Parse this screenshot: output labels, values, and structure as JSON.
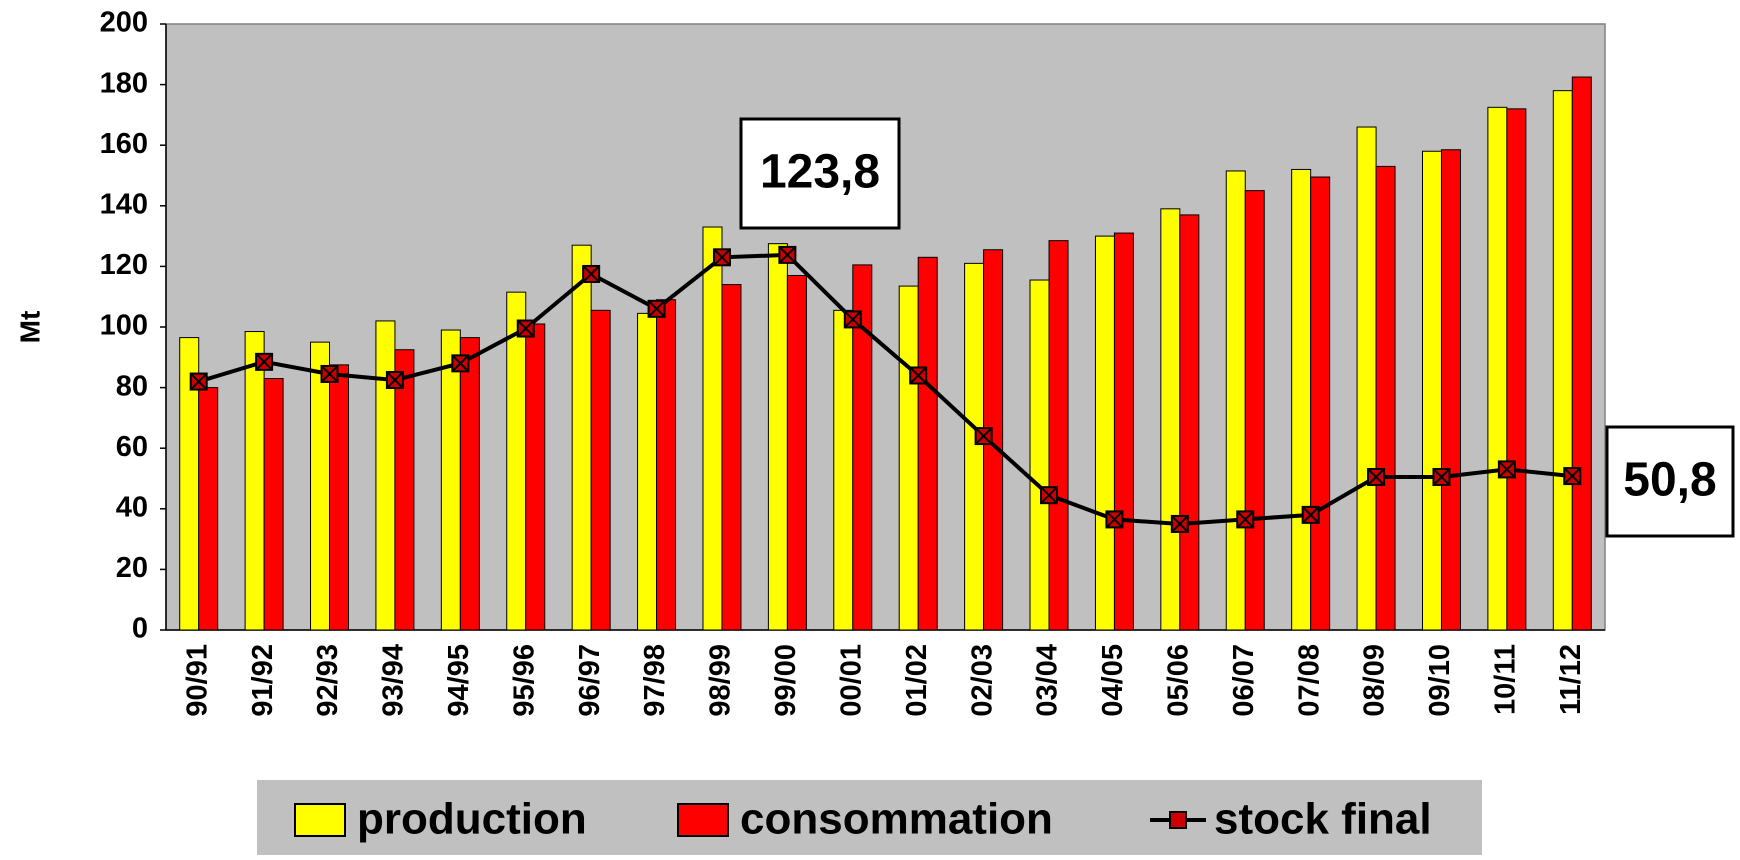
{
  "chart_data": {
    "type": "bar-line",
    "y_label": "Mt",
    "categories": [
      "90/91",
      "91/92",
      "92/93",
      "93/94",
      "94/95",
      "95/96",
      "96/97",
      "97/98",
      "98/99",
      "99/00",
      "00/01",
      "01/02",
      "02/03",
      "03/04",
      "04/05",
      "05/06",
      "06/07",
      "07/08",
      "08/09",
      "09/10",
      "10/11",
      "11/12"
    ],
    "series": [
      {
        "name": "production",
        "type": "bar",
        "color": "#ffff00",
        "values": [
          96.5,
          98.5,
          95,
          102,
          99,
          111.5,
          127,
          104.5,
          133,
          127.5,
          105.5,
          113.5,
          121,
          115.5,
          130,
          139,
          151.5,
          152,
          166,
          158,
          172.5,
          178
        ]
      },
      {
        "name": "consommation",
        "type": "bar",
        "color": "#ff0000",
        "values": [
          80,
          83,
          87.5,
          92.5,
          96.5,
          101,
          105.5,
          109,
          114,
          117,
          120.5,
          123,
          125.5,
          128.5,
          131,
          137,
          145,
          149.5,
          153,
          158.5,
          172,
          182.5
        ]
      },
      {
        "name": "stock final",
        "type": "line",
        "color": "#000000",
        "marker_color": "#cc0000",
        "values": [
          82,
          88.5,
          84.5,
          82.5,
          88,
          99.5,
          117.5,
          106,
          123,
          123.8,
          102.5,
          84,
          64,
          44.5,
          36.5,
          35,
          36.5,
          38,
          50.5,
          50.5,
          53,
          50.8
        ]
      }
    ],
    "annotations": [
      "123,8",
      "50,8"
    ],
    "ylim": [
      0,
      200
    ],
    "yticks": [
      0,
      20,
      40,
      60,
      80,
      100,
      120,
      140,
      160,
      180,
      200
    ],
    "plot_background": "#c0c0c0",
    "legend": "bottom"
  }
}
